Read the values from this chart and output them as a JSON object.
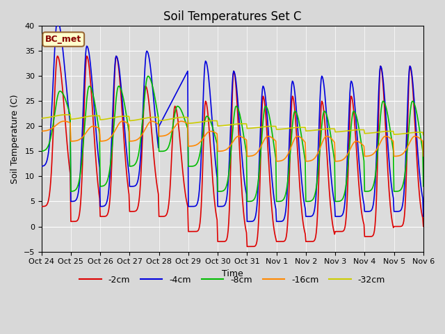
{
  "title": "Soil Temperatures Set C",
  "xlabel": "Time",
  "ylabel": "Soil Temperature (C)",
  "ylim": [
    -5,
    40
  ],
  "annotation": "BC_met",
  "legend_labels": [
    "-2cm",
    "-4cm",
    "-8cm",
    "-16cm",
    "-32cm"
  ],
  "colors": [
    "#dd0000",
    "#0000dd",
    "#00bb00",
    "#ff8800",
    "#cccc00"
  ],
  "tick_dates": [
    "Oct 24",
    "Oct 25",
    "Oct 26",
    "Oct 27",
    "Oct 28",
    "Oct 29",
    "Oct 30",
    "Oct 31",
    "Nov 1",
    "Nov 2",
    "Nov 3",
    "Nov 4",
    "Nov 5",
    "Nov 6"
  ],
  "tick_positions": [
    0,
    1,
    2,
    3,
    4,
    5,
    6,
    7,
    8,
    9,
    10,
    11,
    12,
    13
  ],
  "linewidth": 1.2,
  "fig_bg": "#d8d8d8",
  "plot_bg": "#dcdcdc"
}
